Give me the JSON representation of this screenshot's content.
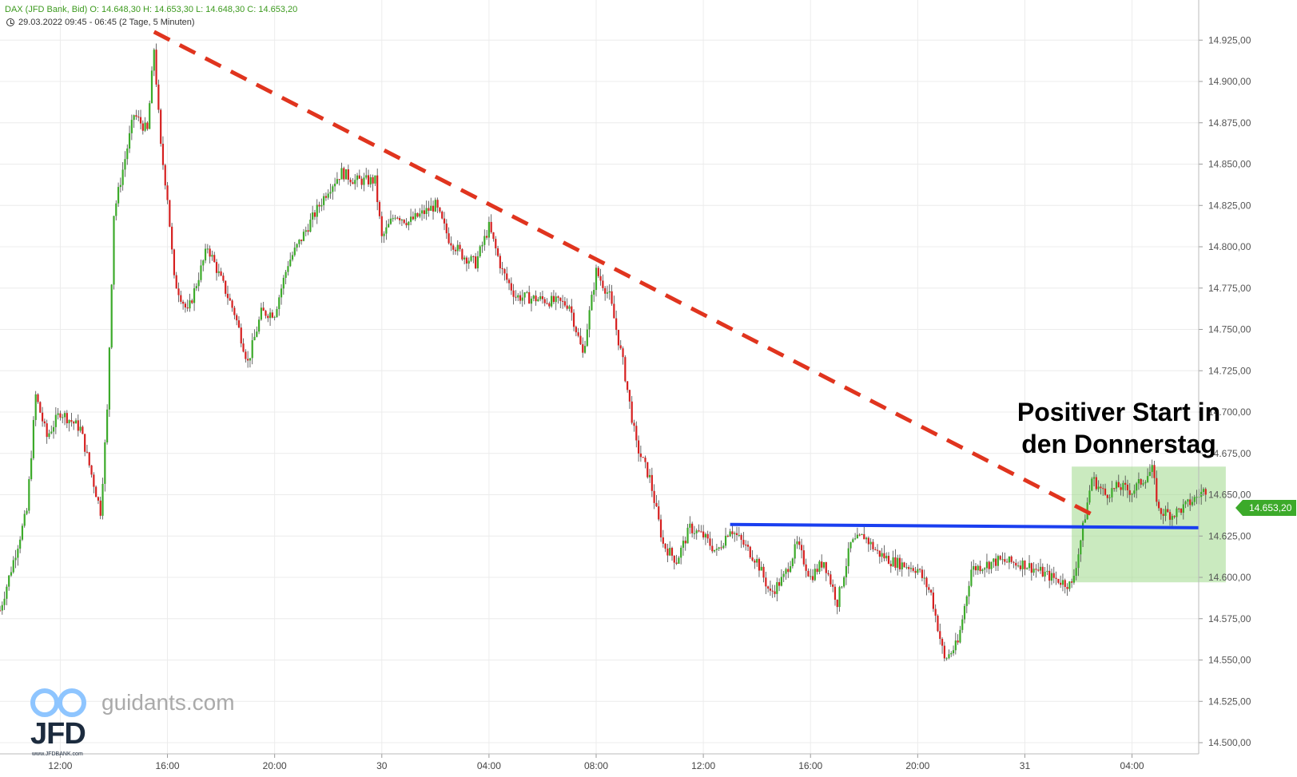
{
  "header": {
    "title_line": "DAX (JFD Bank, Bid)   O: 14.648,30   H: 14.653,30   L: 14.648,30   C: 14.653,20",
    "range_line": "29.03.2022 09:45 - 06:45    (2 Tage, 5 Minuten)"
  },
  "annotation": {
    "line1": "Positiver Start in",
    "line2": "den Donnerstag"
  },
  "branding": {
    "site": "guidants.com",
    "company": "JFD",
    "url": "www.JFDBANK.com"
  },
  "colors": {
    "up": "#3caa2a",
    "down": "#d62020",
    "trendline": "#e0341e",
    "support": "#1a3ff0",
    "zone": "#9fd88a"
  },
  "chart_data": {
    "type": "candlestick",
    "interval": "5 Minuten",
    "y_ticks": [
      14500,
      14525,
      14550,
      14575,
      14600,
      14625,
      14650,
      14675,
      14700,
      14725,
      14750,
      14775,
      14800,
      14825,
      14850,
      14875,
      14900,
      14925
    ],
    "y_tick_labels": [
      "14.500,00",
      "14.525,00",
      "14.550,00",
      "14.575,00",
      "14.600,00",
      "14.625,00",
      "14.650,00",
      "14.675,00",
      "14.700,00",
      "14.725,00",
      "14.750,00",
      "14.775,00",
      "14.800,00",
      "14.825,00",
      "14.850,00",
      "14.875,00",
      "14.900,00",
      "14.925,00"
    ],
    "ylim": [
      14500,
      14950
    ],
    "x_ticks": [
      {
        "label": "12:00",
        "t": "29.03 12:00"
      },
      {
        "label": "16:00",
        "t": "29.03 16:00"
      },
      {
        "label": "20:00",
        "t": "29.03 20:00"
      },
      {
        "label": "30",
        "t": "30.03 00:00"
      },
      {
        "label": "04:00",
        "t": "30.03 04:00"
      },
      {
        "label": "08:00",
        "t": "30.03 08:00"
      },
      {
        "label": "12:00",
        "t": "30.03 12:00"
      },
      {
        "label": "16:00",
        "t": "30.03 16:00"
      },
      {
        "label": "20:00",
        "t": "30.03 20:00"
      },
      {
        "label": "31",
        "t": "31.03 00:00"
      },
      {
        "label": "04:00",
        "t": "31.03 04:00"
      }
    ],
    "last_price": 14653.2,
    "last_price_label": "14.653,20",
    "price_path": [
      [
        "29.03 09:45",
        14580
      ],
      [
        "29.03 10:15",
        14610
      ],
      [
        "29.03 10:45",
        14640
      ],
      [
        "29.03 11:05",
        14710
      ],
      [
        "29.03 11:30",
        14685
      ],
      [
        "29.03 12:00",
        14700
      ],
      [
        "29.03 12:45",
        14690
      ],
      [
        "29.03 13:30",
        14640
      ],
      [
        "29.03 13:45",
        14700
      ],
      [
        "29.03 14:00",
        14820
      ],
      [
        "29.03 14:30",
        14860
      ],
      [
        "29.03 14:45",
        14880
      ],
      [
        "29.03 15:15",
        14870
      ],
      [
        "29.03 15:30",
        14920
      ],
      [
        "29.03 15:45",
        14860
      ],
      [
        "29.03 16:00",
        14830
      ],
      [
        "29.03 16:15",
        14780
      ],
      [
        "29.03 16:45",
        14760
      ],
      [
        "29.03 17:30",
        14800
      ],
      [
        "29.03 18:00",
        14780
      ],
      [
        "29.03 18:30",
        14760
      ],
      [
        "29.03 19:00",
        14730
      ],
      [
        "29.03 19:30",
        14760
      ],
      [
        "29.03 20:00",
        14760
      ],
      [
        "29.03 20:30",
        14790
      ],
      [
        "29.03 21:00",
        14805
      ],
      [
        "29.03 21:30",
        14820
      ],
      [
        "29.03 22:00",
        14835
      ],
      [
        "29.03 22:30",
        14845
      ],
      [
        "29.03 23:00",
        14840
      ],
      [
        "29.03 23:45",
        14840
      ],
      [
        "30.03 00:00",
        14805
      ],
      [
        "30.03 00:30",
        14820
      ],
      [
        "30.03 01:00",
        14815
      ],
      [
        "30.03 01:30",
        14820
      ],
      [
        "30.03 02:00",
        14825
      ],
      [
        "30.03 02:30",
        14805
      ],
      [
        "30.03 03:00",
        14795
      ],
      [
        "30.03 03:30",
        14790
      ],
      [
        "30.03 04:00",
        14812
      ],
      [
        "30.03 04:30",
        14785
      ],
      [
        "30.03 05:00",
        14770
      ],
      [
        "30.03 06:00",
        14768
      ],
      [
        "30.03 07:00",
        14765
      ],
      [
        "30.03 07:30",
        14735
      ],
      [
        "30.03 08:00",
        14785
      ],
      [
        "30.03 08:30",
        14770
      ],
      [
        "30.03 09:00",
        14730
      ],
      [
        "30.03 09:30",
        14680
      ],
      [
        "30.03 10:00",
        14660
      ],
      [
        "30.03 10:30",
        14620
      ],
      [
        "30.03 11:00",
        14610
      ],
      [
        "30.03 11:30",
        14630
      ],
      [
        "30.03 12:00",
        14625
      ],
      [
        "30.03 12:30",
        14615
      ],
      [
        "30.03 13:00",
        14630
      ],
      [
        "30.03 14:00",
        14610
      ],
      [
        "30.03 14:30",
        14590
      ],
      [
        "30.03 15:00",
        14600
      ],
      [
        "30.03 15:30",
        14620
      ],
      [
        "30.03 16:00",
        14600
      ],
      [
        "30.03 16:30",
        14610
      ],
      [
        "30.03 17:00",
        14585
      ],
      [
        "30.03 17:30",
        14620
      ],
      [
        "30.03 18:00",
        14625
      ],
      [
        "30.03 18:30",
        14615
      ],
      [
        "30.03 19:00",
        14610
      ],
      [
        "30.03 20:00",
        14605
      ],
      [
        "30.03 20:30",
        14590
      ],
      [
        "30.03 21:00",
        14550
      ],
      [
        "30.03 21:30",
        14560
      ],
      [
        "30.03 22:00",
        14605
      ],
      [
        "30.03 23:00",
        14610
      ],
      [
        "31.03 00:00",
        14608
      ],
      [
        "31.03 01:00",
        14600
      ],
      [
        "31.03 01:45",
        14595
      ],
      [
        "31.03 02:00",
        14615
      ],
      [
        "31.03 02:30",
        14660
      ],
      [
        "31.03 03:00",
        14650
      ],
      [
        "31.03 03:30",
        14655
      ],
      [
        "31.03 04:00",
        14652
      ],
      [
        "31.03 04:45",
        14665
      ],
      [
        "31.03 05:00",
        14640
      ],
      [
        "31.03 05:30",
        14638
      ],
      [
        "31.03 06:00",
        14643
      ],
      [
        "31.03 06:45",
        14653.2
      ]
    ],
    "trendline": {
      "start": [
        "29.03 15:30",
        14930
      ],
      "end": [
        "31.03 02:45",
        14636
      ]
    },
    "support_line": {
      "start": [
        "30.03 13:00",
        14632
      ],
      "end": [
        "31.03 06:30",
        14630
      ]
    },
    "highlight_zone": {
      "t_start": "31.03 01:45",
      "t_end": "31.03 07:30",
      "y_low": 14597,
      "y_high": 14667
    }
  }
}
